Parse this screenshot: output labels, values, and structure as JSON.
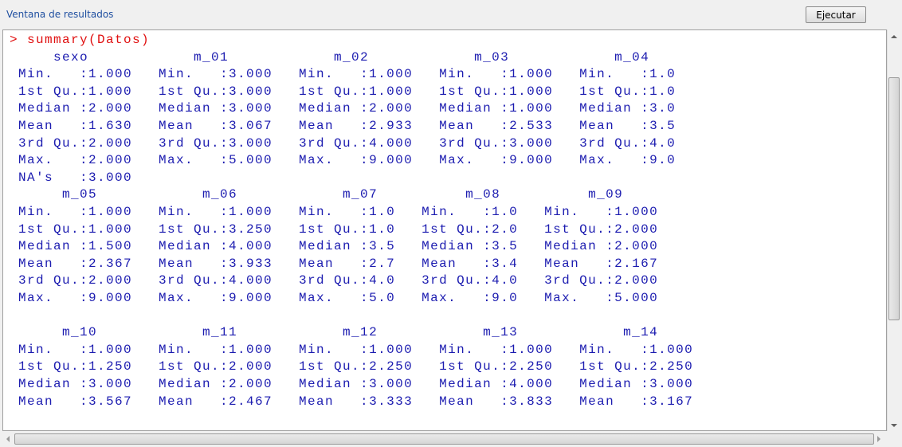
{
  "header": {
    "title": "Ventana de resultados",
    "button": "Ejecutar"
  },
  "console": {
    "command": "> summary(Datos)",
    "blocks": [
      {
        "lines": [
          "     sexo            m_01            m_02            m_03            m_04",
          " Min.   :1.000   Min.   :3.000   Min.   :1.000   Min.   :1.000   Min.   :1.0",
          " 1st Qu.:1.000   1st Qu.:3.000   1st Qu.:1.000   1st Qu.:1.000   1st Qu.:1.0",
          " Median :2.000   Median :3.000   Median :2.000   Median :1.000   Median :3.0",
          " Mean   :1.630   Mean   :3.067   Mean   :2.933   Mean   :2.533   Mean   :3.5",
          " 3rd Qu.:2.000   3rd Qu.:3.000   3rd Qu.:4.000   3rd Qu.:3.000   3rd Qu.:4.0",
          " Max.   :2.000   Max.   :5.000   Max.   :9.000   Max.   :9.000   Max.   :9.0",
          " NA's   :3.000"
        ]
      },
      {
        "lines": [
          "      m_05            m_06            m_07          m_08          m_09",
          " Min.   :1.000   Min.   :1.000   Min.   :1.0   Min.   :1.0   Min.   :1.000",
          " 1st Qu.:1.000   1st Qu.:3.250   1st Qu.:1.0   1st Qu.:2.0   1st Qu.:2.000",
          " Median :1.500   Median :4.000   Median :3.5   Median :3.5   Median :2.000",
          " Mean   :2.367   Mean   :3.933   Mean   :2.7   Mean   :3.4   Mean   :2.167",
          " 3rd Qu.:2.000   3rd Qu.:4.000   3rd Qu.:4.0   3rd Qu.:4.0   3rd Qu.:2.000",
          " Max.   :9.000   Max.   :9.000   Max.   :5.0   Max.   :9.0   Max.   :5.000"
        ]
      },
      {
        "lines": [
          "      m_10            m_11            m_12            m_13            m_14",
          " Min.   :1.000   Min.   :1.000   Min.   :1.000   Min.   :1.000   Min.   :1.000",
          " 1st Qu.:1.250   1st Qu.:2.000   1st Qu.:2.250   1st Qu.:2.250   1st Qu.:2.250",
          " Median :3.000   Median :2.000   Median :3.000   Median :4.000   Median :3.000",
          " Mean   :3.567   Mean   :2.467   Mean   :3.333   Mean   :3.833   Mean   :3.167"
        ]
      }
    ]
  }
}
